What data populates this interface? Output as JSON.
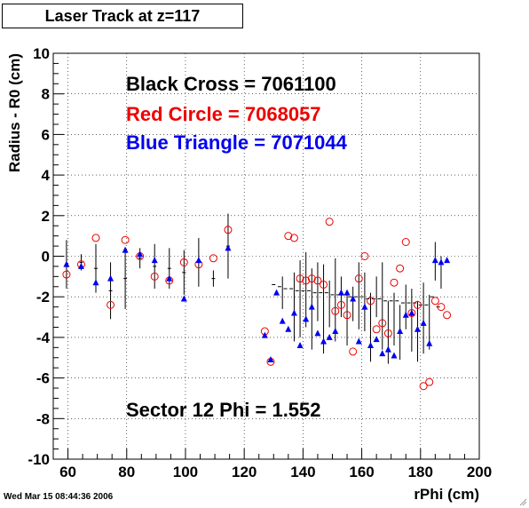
{
  "window": {
    "title": "Laser Track at z=117",
    "timestamp": "Wed Mar 15 08:44:36 2006"
  },
  "colors": {
    "black": "#000000",
    "red": "#ee0000",
    "blue": "#0000ee"
  },
  "chart_data": {
    "type": "scatter",
    "title": "Laser Track at z=117",
    "xlabel": "rPhi (cm)",
    "ylabel": "Radius - R0 (cm)",
    "xlim": [
      55,
      200
    ],
    "ylim": [
      -10,
      10
    ],
    "xticks": [
      60,
      80,
      100,
      120,
      140,
      160,
      180,
      200
    ],
    "yticks": [
      -10,
      -8,
      -6,
      -4,
      -2,
      0,
      2,
      4,
      6,
      8,
      10
    ],
    "grid": true,
    "annotations": [
      {
        "text": "Black Cross  = 7061100",
        "color": "#000000"
      },
      {
        "text": "Red Circle = 7068057",
        "color": "#ee0000"
      },
      {
        "text": "Blue Triangle = 7071044",
        "color": "#0000ee"
      },
      {
        "text": "Sector 12 Phi = 1.552",
        "color": "#000000"
      }
    ],
    "series": [
      {
        "marker": "cross",
        "color": "#000000",
        "points": [
          {
            "x": 59.5,
            "y": -0.4,
            "err": 1.2
          },
          {
            "x": 64.5,
            "y": -0.3,
            "err": 0.4
          },
          {
            "x": 69.5,
            "y": -0.6,
            "err": 1.2
          },
          {
            "x": 74.5,
            "y": -1.7,
            "err": 1.4
          },
          {
            "x": 79.5,
            "y": -1.1,
            "err": 1.5
          },
          {
            "x": 84.5,
            "y": -0.1,
            "err": 0.5
          },
          {
            "x": 89.5,
            "y": -0.5,
            "err": 1.1
          },
          {
            "x": 94.5,
            "y": -0.6,
            "err": 1.0
          },
          {
            "x": 99.5,
            "y": -0.8,
            "err": 1.1
          },
          {
            "x": 104.5,
            "y": -0.3,
            "err": 1.2
          },
          {
            "x": 109.5,
            "y": -1.1,
            "err": 0.4
          },
          {
            "x": 114.5,
            "y": 0.5,
            "err": 1.6
          },
          {
            "x": 130,
            "y": -1.4
          },
          {
            "x": 132,
            "y": -1.5
          },
          {
            "x": 134,
            "y": -1.6
          },
          {
            "x": 136,
            "y": -1.6
          },
          {
            "x": 138,
            "y": -1.7
          },
          {
            "x": 140,
            "y": -1.7
          },
          {
            "x": 142,
            "y": -1.7
          },
          {
            "x": 144,
            "y": -1.8
          },
          {
            "x": 146,
            "y": -1.8
          },
          {
            "x": 148,
            "y": -1.8
          },
          {
            "x": 150,
            "y": -1.9
          },
          {
            "x": 152,
            "y": -1.9
          },
          {
            "x": 154,
            "y": -1.9
          },
          {
            "x": 156,
            "y": -2.0
          },
          {
            "x": 158,
            "y": -2.0
          },
          {
            "x": 160,
            "y": -2.0
          },
          {
            "x": 162,
            "y": -2.1
          },
          {
            "x": 164,
            "y": -2.1
          },
          {
            "x": 166,
            "y": -2.1
          },
          {
            "x": 168,
            "y": -2.2
          },
          {
            "x": 170,
            "y": -2.2
          },
          {
            "x": 172,
            "y": -2.2
          },
          {
            "x": 174,
            "y": -2.3
          },
          {
            "x": 176,
            "y": -2.3
          },
          {
            "x": 178,
            "y": -2.3
          },
          {
            "x": 180,
            "y": -2.4
          },
          {
            "x": 182,
            "y": -2.4
          },
          {
            "x": 184,
            "y": -2.0
          },
          {
            "x": 186,
            "y": -2.5
          }
        ]
      },
      {
        "marker": "circle",
        "color": "#ee0000",
        "points": [
          {
            "x": 59.5,
            "y": -0.9
          },
          {
            "x": 64.5,
            "y": -0.4
          },
          {
            "x": 69.5,
            "y": 0.9
          },
          {
            "x": 74.5,
            "y": -2.4
          },
          {
            "x": 79.5,
            "y": 0.8
          },
          {
            "x": 84.5,
            "y": 0.0
          },
          {
            "x": 89.5,
            "y": -1.0
          },
          {
            "x": 94.5,
            "y": -1.2
          },
          {
            "x": 99.5,
            "y": -0.3
          },
          {
            "x": 104.5,
            "y": -0.4
          },
          {
            "x": 109.5,
            "y": -0.1
          },
          {
            "x": 114.5,
            "y": 1.3
          },
          {
            "x": 127,
            "y": -3.7
          },
          {
            "x": 129,
            "y": -5.2
          },
          {
            "x": 135,
            "y": 1.0
          },
          {
            "x": 137,
            "y": 0.9
          },
          {
            "x": 139,
            "y": -1.1
          },
          {
            "x": 141,
            "y": -1.2
          },
          {
            "x": 143,
            "y": -1.1
          },
          {
            "x": 145,
            "y": -1.2
          },
          {
            "x": 147,
            "y": -1.4
          },
          {
            "x": 149,
            "y": 1.7
          },
          {
            "x": 151,
            "y": -2.7
          },
          {
            "x": 153,
            "y": -2.4
          },
          {
            "x": 155,
            "y": -2.9
          },
          {
            "x": 157,
            "y": -4.7
          },
          {
            "x": 159,
            "y": -1.1
          },
          {
            "x": 161,
            "y": 0.0
          },
          {
            "x": 163,
            "y": -2.2
          },
          {
            "x": 165,
            "y": -3.6
          },
          {
            "x": 167,
            "y": -3.3
          },
          {
            "x": 169,
            "y": -3.8
          },
          {
            "x": 171,
            "y": -1.3
          },
          {
            "x": 173,
            "y": -0.6
          },
          {
            "x": 175,
            "y": 0.7
          },
          {
            "x": 177,
            "y": -2.8
          },
          {
            "x": 179,
            "y": -2.4
          },
          {
            "x": 181,
            "y": -6.4
          },
          {
            "x": 183,
            "y": -6.2
          },
          {
            "x": 185,
            "y": -2.2
          },
          {
            "x": 187,
            "y": -2.5
          },
          {
            "x": 189,
            "y": -2.9
          }
        ]
      },
      {
        "marker": "triangle",
        "color": "#0000ee",
        "points": [
          {
            "x": 59.5,
            "y": -0.4
          },
          {
            "x": 64.5,
            "y": -0.5
          },
          {
            "x": 69.5,
            "y": -1.3
          },
          {
            "x": 74.5,
            "y": -1.1
          },
          {
            "x": 79.5,
            "y": 0.3
          },
          {
            "x": 84.5,
            "y": 0.1
          },
          {
            "x": 89.5,
            "y": -0.2
          },
          {
            "x": 94.5,
            "y": -1.1
          },
          {
            "x": 99.5,
            "y": -2.1
          },
          {
            "x": 104.5,
            "y": -0.2
          },
          {
            "x": 114.5,
            "y": 0.4
          },
          {
            "x": 127,
            "y": -3.9
          },
          {
            "x": 129,
            "y": -5.1
          },
          {
            "x": 131,
            "y": -1.8
          },
          {
            "x": 133,
            "y": -3.2
          },
          {
            "x": 135,
            "y": -3.6
          },
          {
            "x": 137,
            "y": -2.8
          },
          {
            "x": 139,
            "y": -4.4
          },
          {
            "x": 141,
            "y": -3.1
          },
          {
            "x": 143,
            "y": -2.5
          },
          {
            "x": 145,
            "y": -3.8
          },
          {
            "x": 147,
            "y": -4.2
          },
          {
            "x": 149,
            "y": -4.0
          },
          {
            "x": 151,
            "y": -3.7
          },
          {
            "x": 153,
            "y": -1.8
          },
          {
            "x": 155,
            "y": -1.8
          },
          {
            "x": 157,
            "y": -2.1
          },
          {
            "x": 159,
            "y": -4.2
          },
          {
            "x": 161,
            "y": -2.5
          },
          {
            "x": 163,
            "y": -4.4
          },
          {
            "x": 165,
            "y": -4.1
          },
          {
            "x": 167,
            "y": -4.8
          },
          {
            "x": 169,
            "y": -4.6
          },
          {
            "x": 171,
            "y": -4.9
          },
          {
            "x": 173,
            "y": -3.7
          },
          {
            "x": 175,
            "y": -2.9
          },
          {
            "x": 177,
            "y": -2.8
          },
          {
            "x": 179,
            "y": -3.6
          },
          {
            "x": 181,
            "y": -3.3
          },
          {
            "x": 183,
            "y": -4.3
          },
          {
            "x": 185,
            "y": -0.2
          },
          {
            "x": 187,
            "y": -0.3
          },
          {
            "x": 189,
            "y": -0.2
          }
        ]
      }
    ],
    "error_bars": [
      {
        "x": 133,
        "lo": -2.6,
        "hi": -1.0
      },
      {
        "x": 137,
        "lo": -4.2,
        "hi": -0.8
      },
      {
        "x": 139,
        "lo": -4.0,
        "hi": -0.2
      },
      {
        "x": 141,
        "lo": -3.5,
        "hi": 0.2
      },
      {
        "x": 143,
        "lo": -4.6,
        "hi": -0.6
      },
      {
        "x": 145,
        "lo": -3.2,
        "hi": -0.3
      },
      {
        "x": 147,
        "lo": -4.8,
        "hi": -0.4
      },
      {
        "x": 149,
        "lo": -3.5,
        "hi": -1.2
      },
      {
        "x": 151,
        "lo": -4.2,
        "hi": -0.1
      },
      {
        "x": 153,
        "lo": -3.0,
        "hi": -1.0
      },
      {
        "x": 155,
        "lo": -4.4,
        "hi": -1.7
      },
      {
        "x": 157,
        "lo": -3.2,
        "hi": -1.5
      },
      {
        "x": 159,
        "lo": -3.6,
        "hi": -0.3
      },
      {
        "x": 161,
        "lo": -3.7,
        "hi": -0.8
      },
      {
        "x": 163,
        "lo": -5.2,
        "hi": -1.8
      },
      {
        "x": 165,
        "lo": -3.0,
        "hi": -1.0
      },
      {
        "x": 167,
        "lo": -4.6,
        "hi": -0.3
      },
      {
        "x": 169,
        "lo": -5.3,
        "hi": -2.2
      },
      {
        "x": 171,
        "lo": -4.4,
        "hi": -1.8
      },
      {
        "x": 173,
        "lo": -5.1,
        "hi": -2.4
      },
      {
        "x": 175,
        "lo": -3.6,
        "hi": -1.4
      },
      {
        "x": 177,
        "lo": -4.7,
        "hi": -1.6
      },
      {
        "x": 179,
        "lo": -5.2,
        "hi": -2.2
      },
      {
        "x": 181,
        "lo": -4.8,
        "hi": -1.3
      },
      {
        "x": 183,
        "lo": -4.6,
        "hi": -1.9
      },
      {
        "x": 185,
        "lo": -1.2,
        "hi": 0.7
      },
      {
        "x": 187,
        "lo": -1.6,
        "hi": 0.0
      }
    ]
  }
}
